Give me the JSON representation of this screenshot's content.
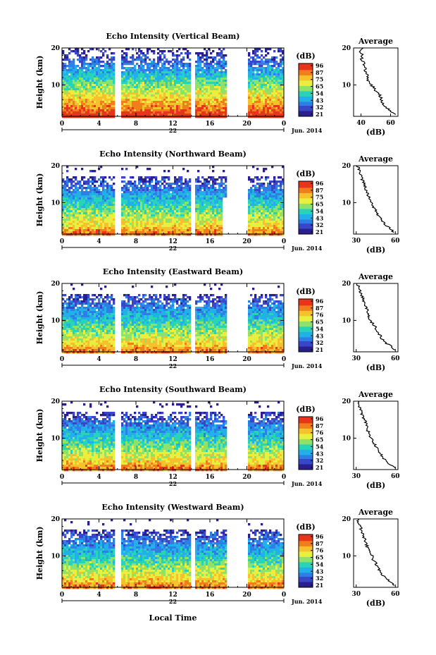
{
  "xlabel_bottom": "Local Time",
  "colors": {
    "colormap": [
      "#2a1f8f",
      "#3a46c8",
      "#2d7fe6",
      "#21b0e8",
      "#29d3b8",
      "#8ee26a",
      "#e9ef3f",
      "#f7c12e",
      "#f27d1c",
      "#e8341a"
    ],
    "missing": "#ffffff",
    "axis": "#000000"
  },
  "chart_data": [
    {
      "type": "heatmap",
      "title": "Echo Intensity (Vertical Beam)",
      "ylabel": "Height (km)",
      "x_ticks": [
        "0",
        "4",
        "8",
        "12",
        "16",
        "20",
        "0"
      ],
      "x_range_hours": [
        0,
        24
      ],
      "y_ticks": [
        "20",
        "10"
      ],
      "y_range_km": [
        1.5,
        20
      ],
      "date_day": "22",
      "date_month_year": "Jun. 2014",
      "data_gaps_hours": [
        [
          5.5,
          6.2
        ],
        [
          13.8,
          14.3
        ],
        [
          17.8,
          19.9
        ]
      ],
      "colorbar": {
        "unit": "(dB)",
        "ticks": [
          "96",
          "87",
          "75",
          "65",
          "54",
          "43",
          "32",
          "21"
        ],
        "range": [
          21,
          96
        ]
      },
      "profile": {
        "title": "Average",
        "xlabel": "(dB)",
        "x_ticks": [
          "40",
          "60"
        ],
        "y_ticks": [
          "20",
          "10"
        ],
        "x_range": [
          35,
          65
        ],
        "heights_km": [
          2,
          3,
          4,
          5,
          6,
          7,
          8,
          9,
          10,
          11,
          12,
          13,
          14,
          15,
          16,
          17,
          18,
          19,
          20
        ],
        "values_db": [
          63,
          60,
          57,
          55,
          54,
          53,
          51,
          49,
          47,
          45,
          44,
          44,
          43,
          42,
          42,
          40,
          41,
          39,
          41
        ]
      }
    },
    {
      "type": "heatmap",
      "title": "Echo Intensity (Northward Beam)",
      "ylabel": "Height (km)",
      "x_ticks": [
        "0",
        "4",
        "8",
        "12",
        "16",
        "20",
        "0"
      ],
      "x_range_hours": [
        0,
        24
      ],
      "y_ticks": [
        "20",
        "10"
      ],
      "y_range_km": [
        1.5,
        20
      ],
      "date_day": "22",
      "date_month_year": "Jun. 2014",
      "data_gaps_hours": [
        [
          5.5,
          6.2
        ],
        [
          13.8,
          14.3
        ],
        [
          17.8,
          19.9
        ]
      ],
      "colorbar": {
        "unit": "(dB)",
        "ticks": [
          "96",
          "87",
          "75",
          "65",
          "54",
          "43",
          "32",
          "21"
        ],
        "range": [
          21,
          96
        ]
      },
      "profile": {
        "title": "Average",
        "xlabel": "(dB)",
        "x_ticks": [
          "30",
          "60"
        ],
        "y_ticks": [
          "20",
          "10"
        ],
        "x_range": [
          28,
          62
        ],
        "heights_km": [
          2,
          3,
          4,
          5,
          6,
          7,
          8,
          9,
          10,
          11,
          12,
          13,
          14,
          15,
          16,
          17,
          18,
          19,
          20
        ],
        "values_db": [
          59,
          56,
          52,
          50,
          48,
          46,
          45,
          43,
          42,
          40,
          39,
          38,
          37,
          36,
          35,
          34,
          33,
          32,
          31
        ]
      }
    },
    {
      "type": "heatmap",
      "title": "Echo Intensity (Eastward Beam)",
      "ylabel": "Height (km)",
      "x_ticks": [
        "0",
        "4",
        "8",
        "12",
        "16",
        "20",
        "0"
      ],
      "x_range_hours": [
        0,
        24
      ],
      "y_ticks": [
        "20",
        "10"
      ],
      "y_range_km": [
        1.5,
        20
      ],
      "date_day": "22",
      "date_month_year": "Jun. 2014",
      "data_gaps_hours": [
        [
          5.5,
          6.2
        ],
        [
          13.8,
          14.3
        ],
        [
          17.8,
          19.9
        ]
      ],
      "colorbar": {
        "unit": "(dB)",
        "ticks": [
          "96",
          "87",
          "76",
          "65",
          "54",
          "43",
          "32",
          "21"
        ],
        "range": [
          21,
          96
        ]
      },
      "profile": {
        "title": "Average",
        "xlabel": "(dB)",
        "x_ticks": [
          "30",
          "60"
        ],
        "y_ticks": [
          "20",
          "10"
        ],
        "x_range": [
          28,
          62
        ],
        "heights_km": [
          2,
          3,
          4,
          5,
          6,
          7,
          8,
          9,
          10,
          11,
          12,
          13,
          14,
          15,
          16,
          17,
          18,
          19,
          20
        ],
        "values_db": [
          60,
          57,
          52,
          50,
          48,
          46,
          45,
          43,
          41,
          40,
          39,
          38,
          37,
          36,
          35,
          34,
          33,
          32,
          31
        ]
      }
    },
    {
      "type": "heatmap",
      "title": "Echo Intensity (Southward Beam)",
      "ylabel": "Height (km)",
      "x_ticks": [
        "0",
        "4",
        "8",
        "12",
        "16",
        "20",
        "0"
      ],
      "x_range_hours": [
        0,
        24
      ],
      "y_ticks": [
        "20",
        "10"
      ],
      "y_range_km": [
        1.5,
        20
      ],
      "date_day": "22",
      "date_month_year": "Jun. 2014",
      "data_gaps_hours": [
        [
          5.5,
          6.2
        ],
        [
          13.8,
          14.3
        ],
        [
          17.8,
          19.9
        ]
      ],
      "colorbar": {
        "unit": "(dB)",
        "ticks": [
          "96",
          "87",
          "76",
          "65",
          "54",
          "43",
          "32",
          "21"
        ],
        "range": [
          21,
          96
        ]
      },
      "profile": {
        "title": "Average",
        "xlabel": "(dB)",
        "x_ticks": [
          "30",
          "60"
        ],
        "y_ticks": [
          "20",
          "10"
        ],
        "x_range": [
          28,
          62
        ],
        "heights_km": [
          2,
          3,
          4,
          5,
          6,
          7,
          8,
          9,
          10,
          11,
          12,
          13,
          14,
          15,
          16,
          17,
          18,
          19,
          20
        ],
        "values_db": [
          60,
          56,
          52,
          50,
          48,
          46,
          45,
          43,
          42,
          40,
          39,
          38,
          38,
          36,
          35,
          34,
          33,
          32,
          31
        ]
      }
    },
    {
      "type": "heatmap",
      "title": "Echo Intensity (Westward Beam)",
      "ylabel": "Height (km)",
      "x_ticks": [
        "0",
        "4",
        "8",
        "12",
        "16",
        "20",
        "0"
      ],
      "x_range_hours": [
        0,
        24
      ],
      "y_ticks": [
        "20",
        "10"
      ],
      "y_range_km": [
        1.5,
        20
      ],
      "date_day": "22",
      "date_month_year": "Jun. 2014",
      "data_gaps_hours": [
        [
          5.5,
          6.2
        ],
        [
          13.8,
          14.3
        ],
        [
          17.8,
          19.9
        ]
      ],
      "colorbar": {
        "unit": "(dB)",
        "ticks": [
          "96",
          "87",
          "76",
          "65",
          "54",
          "43",
          "32",
          "21"
        ],
        "range": [
          21,
          96
        ]
      },
      "profile": {
        "title": "Average",
        "xlabel": "(dB)",
        "x_ticks": [
          "30",
          "60"
        ],
        "y_ticks": [
          "20",
          "10"
        ],
        "x_range": [
          28,
          62
        ],
        "heights_km": [
          2,
          3,
          4,
          5,
          6,
          7,
          8,
          9,
          10,
          11,
          12,
          13,
          14,
          15,
          16,
          17,
          18,
          19,
          20
        ],
        "values_db": [
          59,
          56,
          52,
          50,
          48,
          46,
          45,
          43,
          42,
          40,
          39,
          38,
          37,
          36,
          35,
          34,
          33,
          32,
          31
        ]
      }
    }
  ]
}
